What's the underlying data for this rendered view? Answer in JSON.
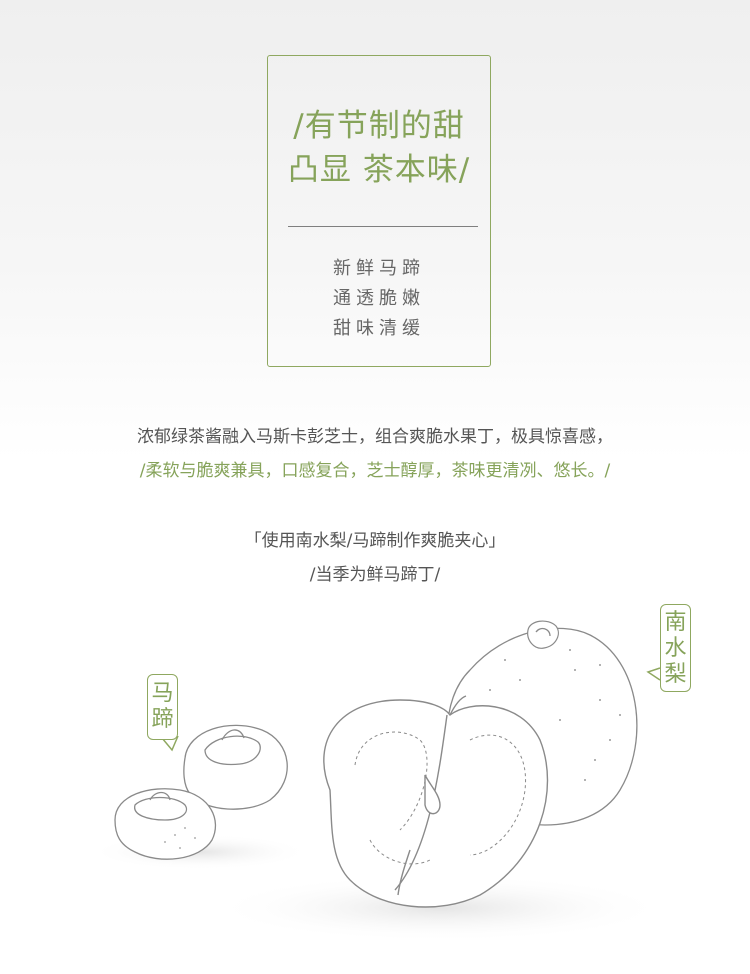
{
  "title_box": {
    "headline_line1": "/有节制的甜",
    "headline_line2": "凸显 茶本味/",
    "sub_line1": "新鲜马蹄",
    "sub_line2": "通透脆嫩",
    "sub_line3": "甜味清缓"
  },
  "description": {
    "line1": "浓郁绿茶酱融入马斯卡彭芝士，组合爽脆水果丁，极具惊喜感，",
    "line2": "/柔软与脆爽兼具，口感复合，芝士醇厚，茶味更清冽、悠长。/"
  },
  "ingredients": {
    "line1": "「使用南水梨/马蹄制作爽脆夹心」",
    "line2": "/当季为鲜马蹄丁/"
  },
  "labels": {
    "water_chestnut": [
      "马",
      "蹄"
    ],
    "pear": [
      "南",
      "水",
      "梨"
    ]
  },
  "colors": {
    "accent_green": "#86a35a",
    "text_gray": "#555555"
  }
}
